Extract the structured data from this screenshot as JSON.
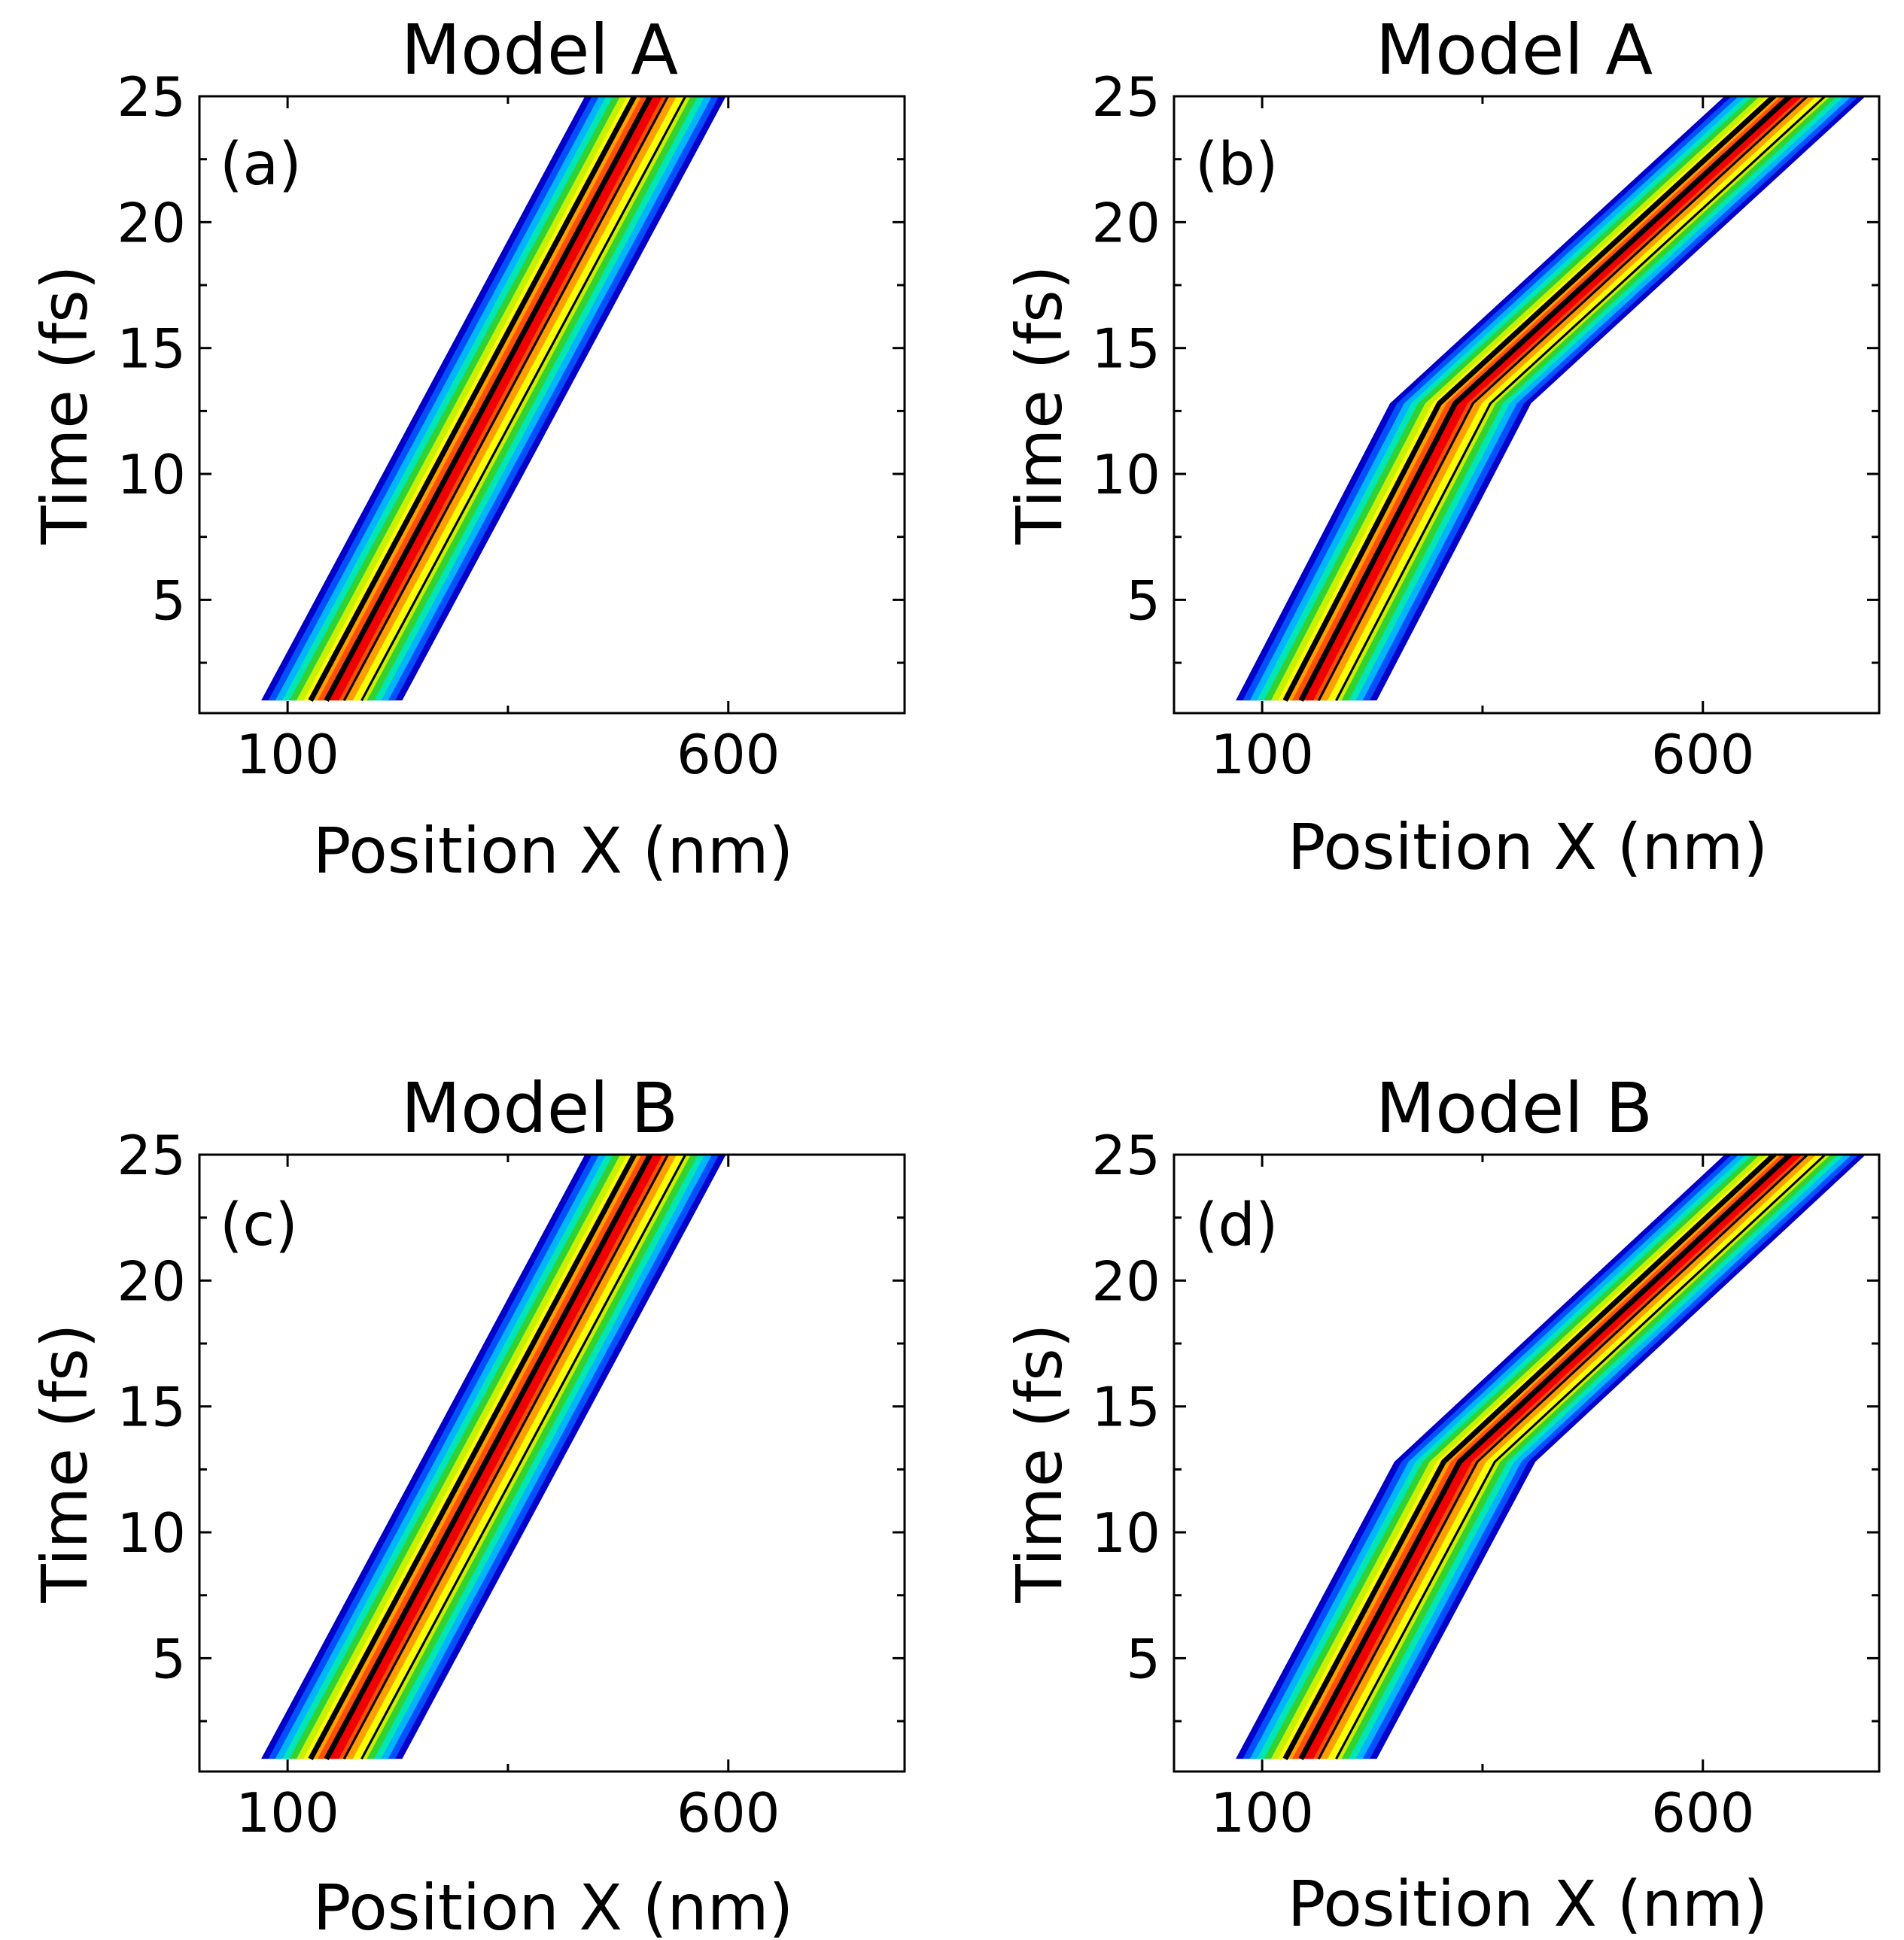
{
  "chart_data": [
    {
      "type": "heatmap",
      "title": "Model A",
      "panel_label": "(a)",
      "xlabel": "Position X (nm)",
      "ylabel": "Time (fs)",
      "xlim": [
        0,
        800
      ],
      "ylim": [
        0.5,
        25
      ],
      "xticks": [
        100,
        600
      ],
      "yticks": [
        5,
        10,
        15,
        20,
        25
      ],
      "beam": {
        "x_start": 150,
        "x_end": 525,
        "bend_time": null,
        "x_bend": null,
        "start_time": 1.0
      }
    },
    {
      "type": "heatmap",
      "title": "Model A",
      "panel_label": "(b)",
      "xlabel": "Position X (nm)",
      "ylabel": "Time (fs)",
      "xlim": [
        0,
        800
      ],
      "ylim": [
        0.5,
        25
      ],
      "xticks": [
        100,
        600
      ],
      "yticks": [
        5,
        10,
        15,
        20,
        25
      ],
      "beam": {
        "x_start": 150,
        "x_end": 720,
        "bend_time": 12.8,
        "x_bend": 325,
        "start_time": 1.0
      }
    },
    {
      "type": "heatmap",
      "title": "Model B",
      "panel_label": "(c)",
      "xlabel": "Position X (nm)",
      "ylabel": "Time (fs)",
      "xlim": [
        0,
        800
      ],
      "ylim": [
        0.5,
        25
      ],
      "xticks": [
        100,
        600
      ],
      "yticks": [
        5,
        10,
        15,
        20,
        25
      ],
      "beam": {
        "x_start": 150,
        "x_end": 525,
        "bend_time": null,
        "x_bend": null,
        "start_time": 1.0
      }
    },
    {
      "type": "heatmap",
      "title": "Model B",
      "panel_label": "(d)",
      "xlabel": "Position X (nm)",
      "ylabel": "Time (fs)",
      "xlim": [
        0,
        800
      ],
      "ylim": [
        0.5,
        25
      ],
      "xticks": [
        100,
        600
      ],
      "yticks": [
        5,
        10,
        15,
        20,
        25
      ],
      "beam": {
        "x_start": 150,
        "x_end": 720,
        "bend_time": 12.8,
        "x_bend": 330,
        "start_time": 1.0
      }
    }
  ],
  "colors": {
    "band_levels": [
      "#0000c8",
      "#0050ff",
      "#00b4ff",
      "#00e6b4",
      "#32d232",
      "#c8f000",
      "#ffff00",
      "#ffa000",
      "#ff5000",
      "#f00000"
    ],
    "contour": "#000000"
  }
}
